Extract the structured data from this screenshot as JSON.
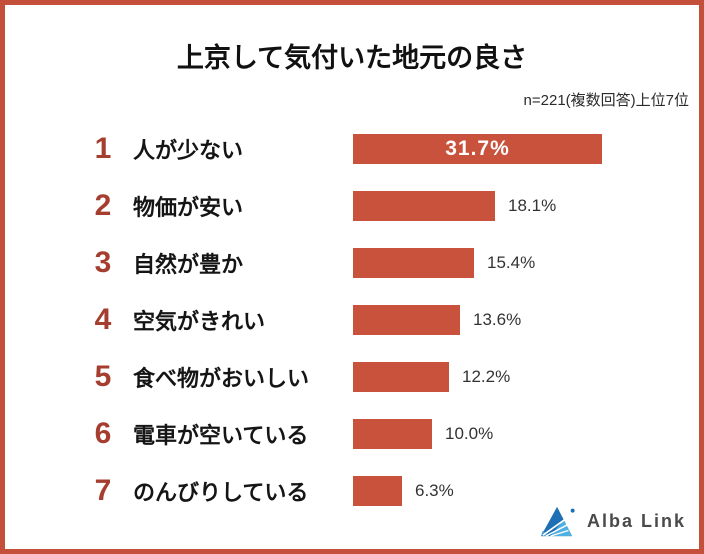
{
  "frame": {
    "border_color": "#c4503b",
    "background": "#ffffff"
  },
  "header": {
    "title": "上京して気付いた地元の良さ",
    "note": "n=221(複数回答)上位7位"
  },
  "chart_data": {
    "type": "bar",
    "orientation": "horizontal",
    "title": "上京して気付いた地元の良さ",
    "note": "n=221(複数回答)上位7位",
    "ranks": [
      1,
      2,
      3,
      4,
      5,
      6,
      7
    ],
    "categories": [
      "人が少ない",
      "物価が安い",
      "自然が豊か",
      "空気がきれい",
      "食べ物がおいしい",
      "電車が空いている",
      "のんびりしている"
    ],
    "values": [
      31.7,
      18.1,
      15.4,
      13.6,
      12.2,
      10.0,
      6.3
    ],
    "value_labels": [
      "31.7%",
      "18.1%",
      "15.4%",
      "13.6%",
      "12.2%",
      "10.0%",
      "6.3%"
    ],
    "xlim": [
      0,
      35.5
    ],
    "grid": false,
    "legend_position": "none",
    "bar_color": "#c9523d",
    "rank_color": "#a53e2f",
    "value_inside_color": "#ffffff",
    "value_outside_color": "#333333"
  },
  "footer": {
    "logo_text": "Alba Link",
    "logo_dark_blue": "#1e6fb3",
    "logo_light_blue": "#4fb0e4"
  }
}
